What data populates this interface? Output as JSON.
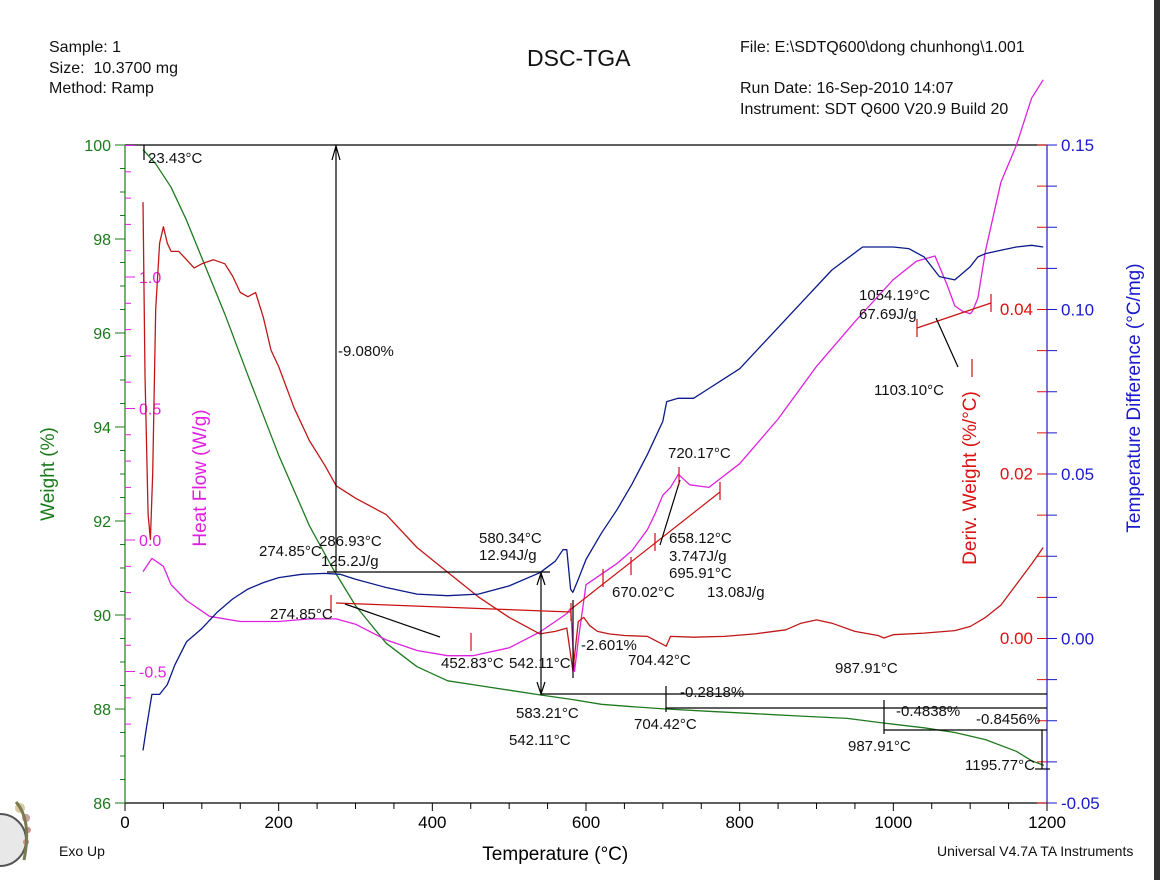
{
  "header": {
    "sample": "Sample: 1",
    "size": "Size:  10.3700 mg",
    "method": "Method: Ramp",
    "title": "DSC-TGA",
    "file": "File: E:\\SDTQ600\\dong chunhong\\1.001",
    "run_date": "Run Date: 16-Sep-2010 14:07",
    "instrument": "Instrument: SDT Q600 V20.9 Build 20"
  },
  "footer": {
    "exo_up": "Exo Up",
    "software": "Universal V4.7A TA Instruments"
  },
  "chart_data": {
    "type": "line",
    "title": "DSC-TGA",
    "xlabel": "Temperature (°C)",
    "xlim": [
      0,
      1200
    ],
    "xticks": [
      "0",
      "200",
      "400",
      "600",
      "800",
      "1000",
      "1200"
    ],
    "axes": {
      "weight": {
        "label": "Weight (%)",
        "range": [
          86,
          100
        ],
        "ticks": [
          "86",
          "88",
          "90",
          "92",
          "94",
          "96",
          "98",
          "100"
        ],
        "color": "#1a7a1a",
        "side": "left-outer"
      },
      "heat_flow": {
        "label": "Heat Flow (W/g)",
        "range": [
          -0.76,
          1.76
        ],
        "ticks": [
          "-0.5",
          "0.0",
          "0.5",
          "1.0"
        ],
        "color": "#e020e0",
        "side": "left-inner"
      },
      "deriv_weight": {
        "label": "Deriv. Weight (%/°C)",
        "range": [
          -0.02,
          0.06
        ],
        "ticks": [
          "0.00",
          "0.02",
          "0.04"
        ],
        "color": "#dd1111",
        "side": "right-inner"
      },
      "temp_diff": {
        "label": "Temperature Difference (°C/mg)",
        "range": [
          -0.05,
          0.15
        ],
        "ticks": [
          "-0.05",
          "0.00",
          "0.05",
          "0.10",
          "0.15"
        ],
        "color": "#1a1acc",
        "side": "right-outer"
      }
    },
    "series": [
      {
        "name": "Weight",
        "axis": "weight",
        "color": "#1f7a1f",
        "x": [
          23.4,
          40,
          60,
          80,
          100,
          130,
          160,
          200,
          240,
          270,
          300,
          340,
          380,
          420,
          460,
          500,
          540,
          583,
          620,
          660,
          704,
          760,
          820,
          880,
          940,
          988,
          1040,
          1080,
          1120,
          1160,
          1180,
          1195.8
        ],
        "y": [
          99.9,
          99.6,
          99.1,
          98.4,
          97.6,
          96.4,
          95.1,
          93.4,
          91.9,
          91.0,
          90.2,
          89.4,
          88.9,
          88.6,
          88.5,
          88.4,
          88.3,
          88.2,
          88.1,
          88.05,
          88.0,
          87.95,
          87.9,
          87.85,
          87.8,
          87.7,
          87.6,
          87.5,
          87.35,
          87.1,
          86.9,
          86.8
        ]
      },
      {
        "name": "Heat Flow",
        "axis": "heat_flow",
        "color": "#dd22dd",
        "x": [
          23.4,
          35,
          50,
          60,
          80,
          110,
          150,
          200,
          240,
          274.9,
          300,
          340,
          380,
          420,
          452.8,
          500,
          540,
          560,
          575,
          580,
          585,
          590,
          600,
          620,
          640,
          660,
          670,
          680,
          690,
          700,
          710,
          720.2,
          735,
          760,
          800,
          850,
          900,
          950,
          1000,
          1030,
          1054.2,
          1070,
          1080,
          1090,
          1100,
          1103.1,
          1110,
          1120,
          1140,
          1160,
          1180,
          1195
        ],
        "y": [
          -0.12,
          -0.07,
          -0.1,
          -0.17,
          -0.23,
          -0.29,
          -0.31,
          -0.31,
          -0.3,
          -0.3,
          -0.32,
          -0.38,
          -0.42,
          -0.44,
          -0.44,
          -0.41,
          -0.35,
          -0.31,
          -0.28,
          -0.26,
          -0.5,
          -0.38,
          -0.17,
          -0.13,
          -0.09,
          -0.04,
          0.0,
          0.04,
          0.1,
          0.17,
          0.2,
          0.25,
          0.21,
          0.2,
          0.29,
          0.46,
          0.66,
          0.83,
          0.99,
          1.06,
          1.08,
          0.97,
          0.89,
          0.87,
          0.86,
          0.87,
          0.92,
          1.1,
          1.36,
          1.5,
          1.68,
          1.75
        ]
      },
      {
        "name": "Deriv. Weight",
        "axis": "deriv_weight",
        "color": "#c01818",
        "x": [
          23.4,
          26,
          30,
          33,
          36,
          40,
          45,
          50,
          55,
          60,
          70,
          80,
          90,
          100,
          115,
          130,
          140,
          150,
          160,
          170,
          180,
          190,
          200,
          220,
          240,
          260,
          274.9,
          300,
          340,
          380,
          420,
          460,
          500,
          540,
          560,
          575,
          583,
          590,
          597,
          605,
          615,
          630,
          650,
          680,
          704.4,
          710,
          740,
          780,
          820,
          860,
          880,
          900,
          920,
          950,
          980,
          987.9,
          1000,
          1040,
          1080,
          1100,
          1120,
          1140,
          1160,
          1180,
          1195
        ],
        "y": [
          0.053,
          0.032,
          0.015,
          0.012,
          0.02,
          0.04,
          0.048,
          0.05,
          0.048,
          0.047,
          0.047,
          0.046,
          0.045,
          0.0455,
          0.046,
          0.0455,
          0.044,
          0.042,
          0.0415,
          0.042,
          0.039,
          0.035,
          0.033,
          0.028,
          0.024,
          0.021,
          0.0185,
          0.017,
          0.015,
          0.011,
          0.008,
          0.005,
          0.0025,
          0.0005,
          0.0008,
          0.0012,
          -0.004,
          0.002,
          0.0025,
          0.0015,
          0.0008,
          0.0005,
          0.0003,
          0.0002,
          -0.001,
          0.0002,
          0.0001,
          0.0002,
          0.0005,
          0.001,
          0.0018,
          0.0022,
          0.0018,
          0.0008,
          0.0003,
          0.0,
          0.0004,
          0.0006,
          0.0009,
          0.0014,
          0.0025,
          0.004,
          0.0065,
          0.009,
          0.011
        ]
      },
      {
        "name": "Temperature Difference",
        "axis": "temp_diff",
        "color": "#0a1a8a",
        "x": [
          23.4,
          28,
          35,
          45,
          55,
          65,
          80,
          100,
          120,
          140,
          160,
          180,
          200,
          230,
          260,
          280,
          300,
          340,
          380,
          420,
          460,
          500,
          540,
          560,
          570,
          575,
          580,
          583,
          590,
          600,
          620,
          640,
          660,
          680,
          700,
          705,
          720,
          740,
          760,
          800,
          840,
          880,
          920,
          960,
          1000,
          1020,
          1040,
          1060,
          1080,
          1100,
          1110,
          1120,
          1140,
          1160,
          1180,
          1195
        ],
        "y": [
          -0.034,
          -0.027,
          -0.017,
          -0.017,
          -0.014,
          -0.008,
          -0.001,
          0.003,
          0.008,
          0.012,
          0.015,
          0.017,
          0.0185,
          0.0195,
          0.0198,
          0.0195,
          0.018,
          0.0155,
          0.0135,
          0.013,
          0.0135,
          0.016,
          0.02,
          0.0235,
          0.027,
          0.027,
          0.015,
          0.014,
          0.018,
          0.024,
          0.032,
          0.039,
          0.047,
          0.056,
          0.066,
          0.072,
          0.073,
          0.073,
          0.076,
          0.082,
          0.092,
          0.102,
          0.112,
          0.119,
          0.119,
          0.1185,
          0.116,
          0.11,
          0.109,
          0.113,
          0.116,
          0.117,
          0.118,
          0.119,
          0.1195,
          0.119
        ]
      }
    ],
    "annotations": [
      {
        "text": "23.43°C",
        "x": 23.43,
        "note": "start of weight step"
      },
      {
        "text": "-9.080%",
        "note": "weight loss step 23.43–286.93°C"
      },
      {
        "text": "274.85°C",
        "note": "weight step point"
      },
      {
        "text": "286.93°C",
        "note": "heat flow integration"
      },
      {
        "text": "125.2J/g",
        "note": "enthalpy"
      },
      {
        "text": "274.85°C",
        "note": "heat flow onset"
      },
      {
        "text": "452.83°C",
        "note": "heat flow peak"
      },
      {
        "text": "542.11°C",
        "note": "heat flow endpoint"
      },
      {
        "text": "580.34°C",
        "note": "heat flow peak"
      },
      {
        "text": "12.94J/g",
        "note": "enthalpy"
      },
      {
        "text": "583.21°C",
        "note": "weight step end"
      },
      {
        "text": "542.11°C",
        "note": "weight step start"
      },
      {
        "text": "-2.601%",
        "note": "weight loss step"
      },
      {
        "text": "720.17°C",
        "note": "heat flow peak"
      },
      {
        "text": "658.12°C",
        "note": "onset"
      },
      {
        "text": "3.747J/g",
        "note": "enthalpy"
      },
      {
        "text": "695.91°C",
        "note": "onset"
      },
      {
        "text": "13.08J/g",
        "note": "enthalpy"
      },
      {
        "text": "670.02°C",
        "note": "peak"
      },
      {
        "text": "704.42°C",
        "note": "deriv weight peak"
      },
      {
        "text": "-0.2818%",
        "note": "weight loss step"
      },
      {
        "text": "704.42°C",
        "note": "weight step point"
      },
      {
        "text": "1054.19°C",
        "note": "heat flow onset"
      },
      {
        "text": "67.69J/g",
        "note": "enthalpy"
      },
      {
        "text": "1103.10°C",
        "note": "heat flow peak"
      },
      {
        "text": "987.91°C",
        "note": "deriv weight point"
      },
      {
        "text": "-0.4838%",
        "note": "weight loss step"
      },
      {
        "text": "987.91°C",
        "note": "weight step point"
      },
      {
        "text": "-0.8456%",
        "note": "weight loss step"
      },
      {
        "text": "1195.77°C",
        "note": "end point"
      }
    ],
    "grid": false,
    "legend": "none"
  }
}
